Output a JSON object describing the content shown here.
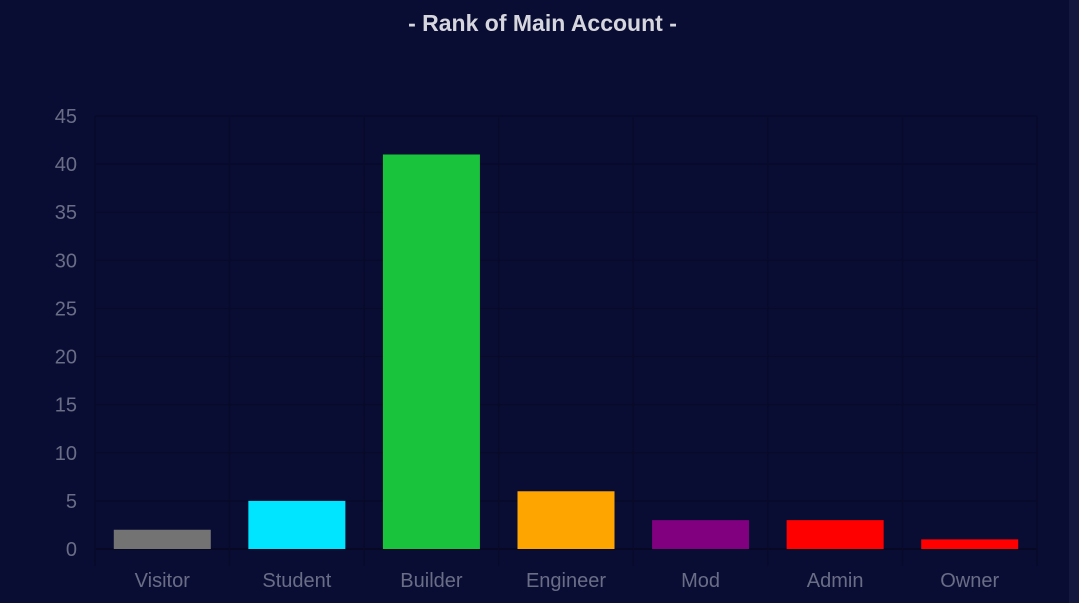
{
  "chart_data": {
    "type": "bar",
    "title": "- Rank of Main Account -",
    "categories": [
      "Visitor",
      "Student",
      "Builder",
      "Engineer",
      "Mod",
      "Admin",
      "Owner"
    ],
    "values": [
      2,
      5,
      41,
      6,
      3,
      3,
      1
    ],
    "colors": [
      "#737373",
      "#00e5ff",
      "#19c43c",
      "#ffa500",
      "#800080",
      "#ff0000",
      "#ff0000"
    ],
    "ylim": [
      0,
      45
    ],
    "yticks": [
      0,
      5,
      10,
      15,
      20,
      25,
      30,
      35,
      40,
      45
    ],
    "grid": true,
    "legend": "none",
    "xlabel": "",
    "ylabel": ""
  }
}
